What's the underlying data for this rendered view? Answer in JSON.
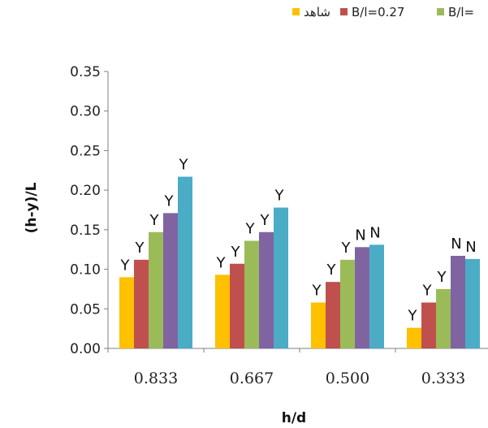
{
  "chart_data": {
    "type": "bar",
    "title": "",
    "xlabel": "h/d",
    "ylabel": "(h-y)/L",
    "ylim": [
      0,
      0.35
    ],
    "yticks": [
      "0.00",
      "0.05",
      "0.10",
      "0.15",
      "0.20",
      "0.25",
      "0.30",
      "0.35"
    ],
    "ytick_values": [
      0,
      0.05,
      0.1,
      0.15,
      0.2,
      0.25,
      0.3,
      0.35
    ],
    "categories": [
      "0.833",
      "0.667",
      "0.500",
      "0.333"
    ],
    "grid": false,
    "legend_position": "top",
    "series": [
      {
        "name": "شاهد",
        "color": "#FFC000",
        "values": [
          0.09,
          0.093,
          0.058,
          0.026
        ],
        "labels": [
          "",
          "",
          "",
          ""
        ]
      },
      {
        "name": "B/l=0.27",
        "color": "#C0504D",
        "values": [
          0.112,
          0.107,
          0.084,
          0.058
        ],
        "labels": [
          "Y",
          "Y",
          "Y",
          "Y"
        ]
      },
      {
        "name": "B/l=",
        "color": "#9BBB59",
        "values": [
          0.147,
          0.136,
          0.112,
          0.075
        ],
        "labels": [
          "Y",
          "Y",
          "Y",
          "Y"
        ]
      },
      {
        "name": "",
        "color": "#8064A2",
        "values": [
          0.171,
          0.147,
          0.128,
          0.117
        ],
        "labels": [
          "Y",
          "Y",
          "N",
          "N"
        ]
      },
      {
        "name": "",
        "color": "#4BACC6",
        "values": [
          0.217,
          0.178,
          0.131,
          0.113
        ],
        "labels": [
          "Y",
          "Y",
          "N",
          "N"
        ]
      }
    ],
    "first_series_labels": [
      "Y",
      "Y",
      "Y",
      "Y"
    ]
  }
}
